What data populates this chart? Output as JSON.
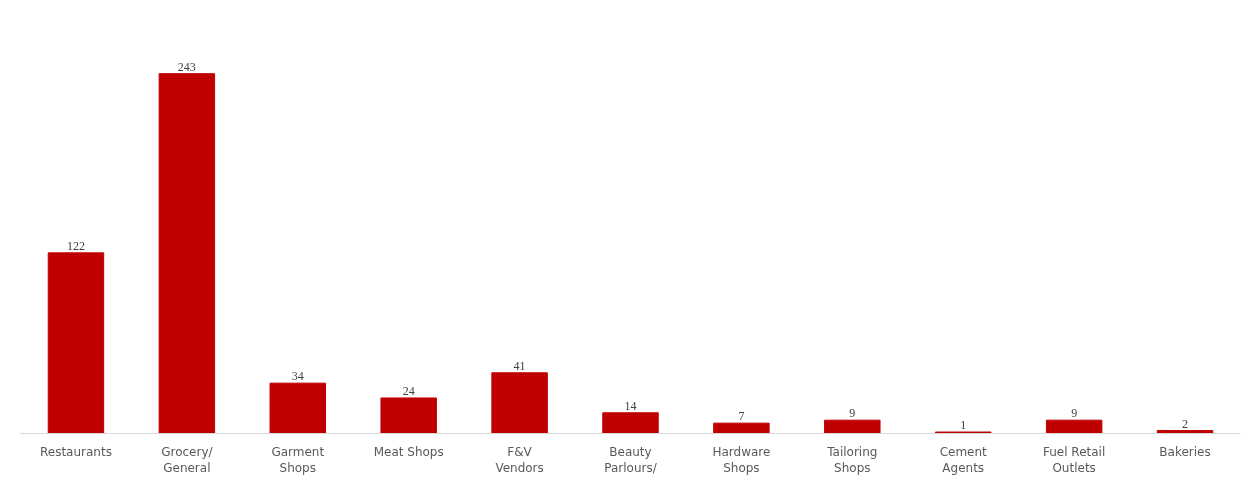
{
  "chart_data": {
    "type": "bar",
    "categories": [
      "Restaurants",
      "Grocery/\nGeneral",
      "Garment\nShops",
      "Meat Shops",
      "F&V\nVendors",
      "Beauty\nParlours/",
      "Hardware\nShops",
      "Tailoring\nShops",
      "Cement\nAgents",
      "Fuel Retail\nOutlets",
      "Bakeries"
    ],
    "values": [
      122,
      243,
      34,
      24,
      41,
      14,
      7,
      9,
      1,
      9,
      2
    ],
    "color": "#c00000",
    "data_labels": true,
    "grid": false
  }
}
